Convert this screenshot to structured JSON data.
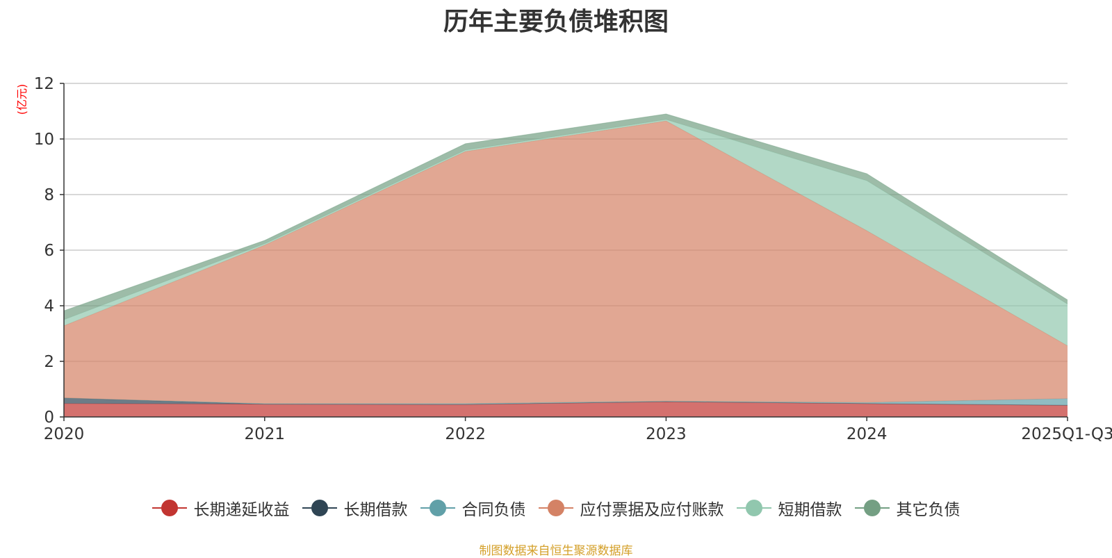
{
  "chart_data": {
    "type": "area",
    "stacked": true,
    "title": "历年主要负债堆积图",
    "ylabel": "(亿元)",
    "ylim": [
      0,
      12
    ],
    "yticks": [
      0,
      2,
      4,
      6,
      8,
      10,
      12
    ],
    "categories": [
      "2020",
      "2021",
      "2022",
      "2023",
      "2024",
      "2025Q1-Q3"
    ],
    "grid": true,
    "legend_position": "bottom",
    "series": [
      {
        "name": "长期递延收益",
        "color": "#c23531",
        "values": [
          0.48,
          0.46,
          0.45,
          0.55,
          0.48,
          0.42
        ]
      },
      {
        "name": "长期借款",
        "color": "#2f4554",
        "values": [
          0.2,
          0.0,
          0.0,
          0.0,
          0.0,
          0.0
        ]
      },
      {
        "name": "合同负债",
        "color": "#61a0a8",
        "values": [
          0.0,
          0.02,
          0.03,
          0.02,
          0.04,
          0.24
        ]
      },
      {
        "name": "应付票据及应付账款",
        "color": "#d48265",
        "values": [
          2.6,
          5.7,
          9.07,
          10.08,
          6.18,
          1.9
        ]
      },
      {
        "name": "短期借款",
        "color": "#91c7ae",
        "values": [
          0.22,
          0.05,
          0.05,
          0.05,
          1.8,
          1.5
        ]
      },
      {
        "name": "其它负债",
        "color": "#749f83",
        "values": [
          0.32,
          0.12,
          0.23,
          0.2,
          0.25,
          0.15
        ]
      }
    ],
    "source": "制图数据来自恒生聚源数据库"
  }
}
